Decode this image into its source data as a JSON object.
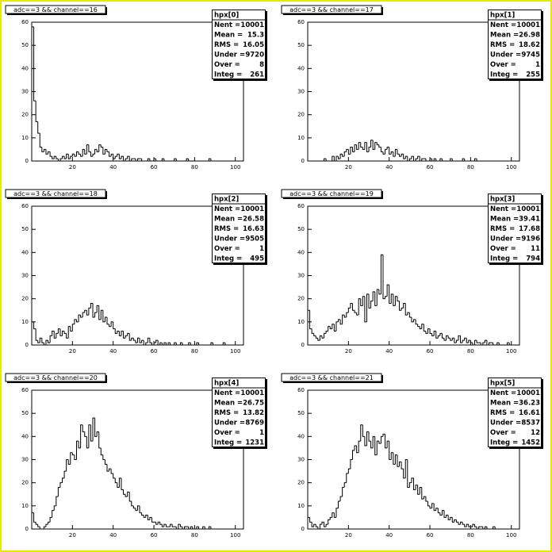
{
  "chart_data": [
    {
      "type": "histogram",
      "title": "adc==3 && channel==16",
      "stats_title": "hpx[0]",
      "stats": [
        {
          "label": "Nent =",
          "value": 10001
        },
        {
          "label": "Mean =",
          "value": 15.3
        },
        {
          "label": "RMS =",
          "value": 16.05
        },
        {
          "label": "Under =",
          "value": 9720
        },
        {
          "label": "Over =",
          "value": 8
        },
        {
          "label": "Integ =",
          "value": 261
        }
      ],
      "bins": [
        0,
        1,
        2,
        3,
        4,
        5,
        6,
        7,
        8,
        9,
        10,
        11,
        12,
        13,
        14,
        15,
        16,
        17,
        18,
        19,
        20,
        21,
        22,
        23,
        24,
        25,
        26,
        27,
        28,
        29,
        30,
        31,
        32,
        33,
        34,
        35,
        36,
        37,
        38,
        39,
        40,
        41,
        42,
        43,
        44,
        45,
        46,
        47,
        48,
        49,
        50,
        51,
        52,
        53,
        54,
        55,
        56,
        57,
        58,
        59,
        60,
        61,
        62,
        63,
        64,
        65,
        66,
        67,
        68,
        69,
        70,
        71,
        72,
        73,
        74,
        75,
        76,
        77,
        78,
        79,
        80,
        81,
        82,
        83,
        84,
        85,
        86,
        87,
        88,
        89,
        90,
        91,
        92,
        93,
        94,
        95,
        96,
        97,
        98,
        99,
        100
      ],
      "values": [
        58,
        26,
        17,
        12,
        6,
        4,
        5,
        3,
        4,
        2,
        1,
        2,
        1,
        0,
        1,
        2,
        1,
        3,
        1,
        2,
        3,
        2,
        4,
        3,
        2,
        5,
        3,
        7,
        4,
        2,
        3,
        5,
        4,
        7,
        6,
        3,
        5,
        4,
        2,
        3,
        1,
        2,
        3,
        1,
        2,
        0,
        1,
        2,
        0,
        1,
        1,
        0,
        1,
        1,
        0,
        0,
        0,
        1,
        0,
        0,
        1,
        0,
        0,
        0,
        1,
        0,
        0,
        0,
        0,
        0,
        1,
        0,
        0,
        0,
        0,
        0,
        1,
        0,
        0,
        0,
        0,
        0,
        0,
        0,
        0,
        0,
        0,
        1,
        0,
        0,
        0,
        0,
        0,
        0,
        0,
        0,
        0,
        0,
        0,
        0
      ],
      "xlim": [
        0,
        104
      ],
      "ylim": [
        0,
        60
      ],
      "xticks": [
        20,
        40,
        60,
        80,
        100
      ],
      "yticks": [
        0,
        10,
        20,
        30,
        40,
        50,
        60
      ]
    },
    {
      "type": "histogram",
      "title": "adc==3 && channel==17",
      "stats_title": "hpx[1]",
      "stats": [
        {
          "label": "Nent =",
          "value": 10001
        },
        {
          "label": "Mean =",
          "value": 26.98
        },
        {
          "label": "RMS =",
          "value": 18.62
        },
        {
          "label": "Under =",
          "value": 9745
        },
        {
          "label": "Over =",
          "value": 1
        },
        {
          "label": "Integ =",
          "value": 255
        }
      ],
      "bins": [
        0,
        1,
        2,
        3,
        4,
        5,
        6,
        7,
        8,
        9,
        10,
        11,
        12,
        13,
        14,
        15,
        16,
        17,
        18,
        19,
        20,
        21,
        22,
        23,
        24,
        25,
        26,
        27,
        28,
        29,
        30,
        31,
        32,
        33,
        34,
        35,
        36,
        37,
        38,
        39,
        40,
        41,
        42,
        43,
        44,
        45,
        46,
        47,
        48,
        49,
        50,
        51,
        52,
        53,
        54,
        55,
        56,
        57,
        58,
        59,
        60,
        61,
        62,
        63,
        64,
        65,
        66,
        67,
        68,
        69,
        70,
        71,
        72,
        73,
        74,
        75,
        76,
        77,
        78,
        79,
        80,
        81,
        82,
        83,
        84,
        85,
        86,
        87,
        88,
        89,
        90,
        91,
        92,
        93,
        94,
        95,
        96,
        97,
        98,
        99,
        100
      ],
      "values": [
        0,
        0,
        0,
        0,
        0,
        0,
        0,
        0,
        1,
        0,
        0,
        0,
        2,
        0,
        2,
        1,
        3,
        2,
        4,
        5,
        3,
        6,
        4,
        7,
        5,
        8,
        6,
        5,
        8,
        4,
        6,
        9,
        5,
        8,
        7,
        6,
        4,
        3,
        5,
        6,
        3,
        4,
        2,
        5,
        3,
        2,
        3,
        1,
        2,
        0,
        1,
        2,
        0,
        1,
        2,
        0,
        1,
        1,
        0,
        0,
        1,
        0,
        1,
        0,
        0,
        1,
        0,
        0,
        0,
        0,
        1,
        0,
        0,
        0,
        0,
        0,
        1,
        0,
        0,
        0,
        0,
        0,
        1,
        0,
        0,
        0,
        0,
        0,
        0,
        0,
        0,
        0,
        0,
        0,
        0,
        0,
        0,
        0,
        0,
        0
      ],
      "xlim": [
        0,
        104
      ],
      "ylim": [
        0,
        60
      ],
      "xticks": [
        20,
        40,
        60,
        80,
        100
      ],
      "yticks": [
        0,
        10,
        20,
        30,
        40,
        50,
        60
      ]
    },
    {
      "type": "histogram",
      "title": "adc==3 && channel==18",
      "stats_title": "hpx[2]",
      "stats": [
        {
          "label": "Nent =",
          "value": 10001
        },
        {
          "label": "Mean =",
          "value": 26.58
        },
        {
          "label": "RMS =",
          "value": 16.63
        },
        {
          "label": "Under =",
          "value": 9505
        },
        {
          "label": "Over =",
          "value": 1
        },
        {
          "label": "Integ =",
          "value": 495
        }
      ],
      "bins": [
        0,
        1,
        2,
        3,
        4,
        5,
        6,
        7,
        8,
        9,
        10,
        11,
        12,
        13,
        14,
        15,
        16,
        17,
        18,
        19,
        20,
        21,
        22,
        23,
        24,
        25,
        26,
        27,
        28,
        29,
        30,
        31,
        32,
        33,
        34,
        35,
        36,
        37,
        38,
        39,
        40,
        41,
        42,
        43,
        44,
        45,
        46,
        47,
        48,
        49,
        50,
        51,
        52,
        53,
        54,
        55,
        56,
        57,
        58,
        59,
        60,
        61,
        62,
        63,
        64,
        65,
        66,
        67,
        68,
        69,
        70,
        71,
        72,
        73,
        74,
        75,
        76,
        77,
        78,
        79,
        80,
        81,
        82,
        83,
        84,
        85,
        86,
        87,
        88,
        89,
        90,
        91,
        92,
        93,
        94,
        95,
        96,
        97,
        98,
        99,
        100
      ],
      "values": [
        10,
        7,
        2,
        1,
        3,
        1,
        0,
        2,
        1,
        4,
        6,
        3,
        5,
        7,
        4,
        6,
        5,
        3,
        8,
        6,
        9,
        11,
        10,
        13,
        12,
        14,
        15,
        13,
        16,
        18,
        12,
        14,
        17,
        11,
        15,
        10,
        12,
        9,
        8,
        10,
        7,
        5,
        6,
        4,
        6,
        3,
        4,
        5,
        2,
        3,
        2,
        1,
        3,
        1,
        2,
        0,
        1,
        3,
        1,
        0,
        1,
        2,
        0,
        1,
        0,
        1,
        0,
        1,
        0,
        0,
        1,
        0,
        0,
        1,
        0,
        0,
        0,
        1,
        0,
        0,
        0,
        1,
        0,
        0,
        0,
        0,
        0,
        0,
        1,
        0,
        0,
        0,
        0,
        0,
        1,
        0,
        0,
        0,
        0,
        0
      ],
      "xlim": [
        0,
        104
      ],
      "ylim": [
        0,
        60
      ],
      "xticks": [
        20,
        40,
        60,
        80,
        100
      ],
      "yticks": [
        0,
        10,
        20,
        30,
        40,
        50,
        60
      ]
    },
    {
      "type": "histogram",
      "title": "adc==3 && channel==19",
      "stats_title": "hpx[3]",
      "stats": [
        {
          "label": "Nent =",
          "value": 10001
        },
        {
          "label": "Mean =",
          "value": 39.41
        },
        {
          "label": "RMS =",
          "value": 17.68
        },
        {
          "label": "Under =",
          "value": 9196
        },
        {
          "label": "Over =",
          "value": 11
        },
        {
          "label": "Integ =",
          "value": 794
        }
      ],
      "bins": [
        0,
        1,
        2,
        3,
        4,
        5,
        6,
        7,
        8,
        9,
        10,
        11,
        12,
        13,
        14,
        15,
        16,
        17,
        18,
        19,
        20,
        21,
        22,
        23,
        24,
        25,
        26,
        27,
        28,
        29,
        30,
        31,
        32,
        33,
        34,
        35,
        36,
        37,
        38,
        39,
        40,
        41,
        42,
        43,
        44,
        45,
        46,
        47,
        48,
        49,
        50,
        51,
        52,
        53,
        54,
        55,
        56,
        57,
        58,
        59,
        60,
        61,
        62,
        63,
        64,
        65,
        66,
        67,
        68,
        69,
        70,
        71,
        72,
        73,
        74,
        75,
        76,
        77,
        78,
        79,
        80,
        81,
        82,
        83,
        84,
        85,
        86,
        87,
        88,
        89,
        90,
        91,
        92,
        93,
        94,
        95,
        96,
        97,
        98,
        99,
        100
      ],
      "values": [
        15,
        7,
        5,
        4,
        3,
        2,
        4,
        3,
        5,
        6,
        8,
        7,
        9,
        6,
        10,
        11,
        9,
        13,
        12,
        14,
        16,
        18,
        15,
        14,
        13,
        20,
        17,
        21,
        10,
        22,
        16,
        19,
        23,
        17,
        24,
        22,
        39,
        20,
        21,
        26,
        18,
        22,
        17,
        21,
        19,
        15,
        16,
        18,
        13,
        14,
        12,
        10,
        11,
        9,
        8,
        7,
        9,
        6,
        5,
        7,
        5,
        4,
        6,
        3,
        4,
        5,
        3,
        2,
        4,
        3,
        2,
        3,
        1,
        2,
        4,
        1,
        2,
        3,
        1,
        2,
        1,
        0,
        2,
        1,
        1,
        0,
        1,
        2,
        0,
        1,
        1,
        0,
        0,
        1,
        0,
        0,
        0,
        0,
        1,
        0
      ],
      "xlim": [
        0,
        104
      ],
      "ylim": [
        0,
        60
      ],
      "xticks": [
        20,
        40,
        60,
        80,
        100
      ],
      "yticks": [
        0,
        10,
        20,
        30,
        40,
        50,
        60
      ]
    },
    {
      "type": "histogram",
      "title": "adc==3 && channel==20",
      "stats_title": "hpx[4]",
      "stats": [
        {
          "label": "Nent =",
          "value": 10001
        },
        {
          "label": "Mean =",
          "value": 26.75
        },
        {
          "label": "RMS =",
          "value": 13.82
        },
        {
          "label": "Under =",
          "value": 8769
        },
        {
          "label": "Over =",
          "value": 1
        },
        {
          "label": "Integ =",
          "value": 1231
        }
      ],
      "bins": [
        0,
        1,
        2,
        3,
        4,
        5,
        6,
        7,
        8,
        9,
        10,
        11,
        12,
        13,
        14,
        15,
        16,
        17,
        18,
        19,
        20,
        21,
        22,
        23,
        24,
        25,
        26,
        27,
        28,
        29,
        30,
        31,
        32,
        33,
        34,
        35,
        36,
        37,
        38,
        39,
        40,
        41,
        42,
        43,
        44,
        45,
        46,
        47,
        48,
        49,
        50,
        51,
        52,
        53,
        54,
        55,
        56,
        57,
        58,
        59,
        60,
        61,
        62,
        63,
        64,
        65,
        66,
        67,
        68,
        69,
        70,
        71,
        72,
        73,
        74,
        75,
        76,
        77,
        78,
        79,
        80,
        81,
        82,
        83,
        84,
        85,
        86,
        87,
        88,
        89,
        90,
        91,
        92,
        93,
        94,
        95,
        96,
        97,
        98,
        99,
        100
      ],
      "values": [
        7,
        3,
        2,
        1,
        0,
        0,
        1,
        2,
        3,
        5,
        8,
        10,
        14,
        18,
        20,
        22,
        25,
        30,
        28,
        33,
        32,
        30,
        38,
        35,
        45,
        42,
        40,
        35,
        45,
        38,
        48,
        40,
        42,
        35,
        32,
        30,
        28,
        25,
        26,
        24,
        22,
        20,
        18,
        22,
        17,
        15,
        14,
        16,
        12,
        10,
        9,
        8,
        10,
        7,
        6,
        5,
        6,
        4,
        5,
        3,
        3,
        2,
        3,
        2,
        1,
        2,
        1,
        1,
        2,
        1,
        1,
        0,
        2,
        1,
        0,
        1,
        1,
        0,
        1,
        0,
        0,
        1,
        0,
        0,
        1,
        0,
        0,
        1,
        0,
        0,
        0,
        0,
        0,
        0,
        0,
        0,
        0,
        0,
        0,
        0
      ],
      "xlim": [
        0,
        104
      ],
      "ylim": [
        0,
        60
      ],
      "xticks": [
        20,
        40,
        60,
        80,
        100
      ],
      "yticks": [
        0,
        10,
        20,
        30,
        40,
        50,
        60
      ]
    },
    {
      "type": "histogram",
      "title": "adc==3 && channel==21",
      "stats_title": "hpx[5]",
      "stats": [
        {
          "label": "Nent =",
          "value": 10001
        },
        {
          "label": "Mean =",
          "value": 36.23
        },
        {
          "label": "RMS =",
          "value": 16.61
        },
        {
          "label": "Under =",
          "value": 8537
        },
        {
          "label": "Over =",
          "value": 12
        },
        {
          "label": "Integ =",
          "value": 1452
        }
      ],
      "bins": [
        0,
        1,
        2,
        3,
        4,
        5,
        6,
        7,
        8,
        9,
        10,
        11,
        12,
        13,
        14,
        15,
        16,
        17,
        18,
        19,
        20,
        21,
        22,
        23,
        24,
        25,
        26,
        27,
        28,
        29,
        30,
        31,
        32,
        33,
        34,
        35,
        36,
        37,
        38,
        39,
        40,
        41,
        42,
        43,
        44,
        45,
        46,
        47,
        48,
        49,
        50,
        51,
        52,
        53,
        54,
        55,
        56,
        57,
        58,
        59,
        60,
        61,
        62,
        63,
        64,
        65,
        66,
        67,
        68,
        69,
        70,
        71,
        72,
        73,
        74,
        75,
        76,
        77,
        78,
        79,
        80,
        81,
        82,
        83,
        84,
        85,
        86,
        87,
        88,
        89,
        90,
        91,
        92,
        93,
        94,
        95,
        96,
        97,
        98,
        99,
        100
      ],
      "values": [
        5,
        3,
        1,
        2,
        1,
        0,
        2,
        3,
        1,
        2,
        4,
        5,
        7,
        5,
        9,
        12,
        14,
        18,
        20,
        24,
        26,
        30,
        34,
        36,
        33,
        38,
        45,
        40,
        36,
        42,
        38,
        35,
        40,
        32,
        38,
        37,
        40,
        41,
        35,
        38,
        30,
        33,
        28,
        32,
        27,
        29,
        26,
        22,
        30,
        18,
        20,
        22,
        17,
        19,
        15,
        18,
        13,
        14,
        12,
        10,
        9,
        11,
        8,
        9,
        7,
        6,
        8,
        5,
        6,
        4,
        5,
        3,
        4,
        3,
        2,
        3,
        2,
        1,
        2,
        1,
        1,
        2,
        1,
        0,
        1,
        1,
        0,
        1,
        0,
        0,
        0,
        1,
        0,
        0,
        0,
        0,
        0,
        0,
        0,
        0
      ],
      "xlim": [
        0,
        104
      ],
      "ylim": [
        0,
        60
      ],
      "xticks": [
        20,
        40,
        60,
        80,
        100
      ],
      "yticks": [
        0,
        10,
        20,
        30,
        40,
        50,
        60
      ]
    }
  ]
}
